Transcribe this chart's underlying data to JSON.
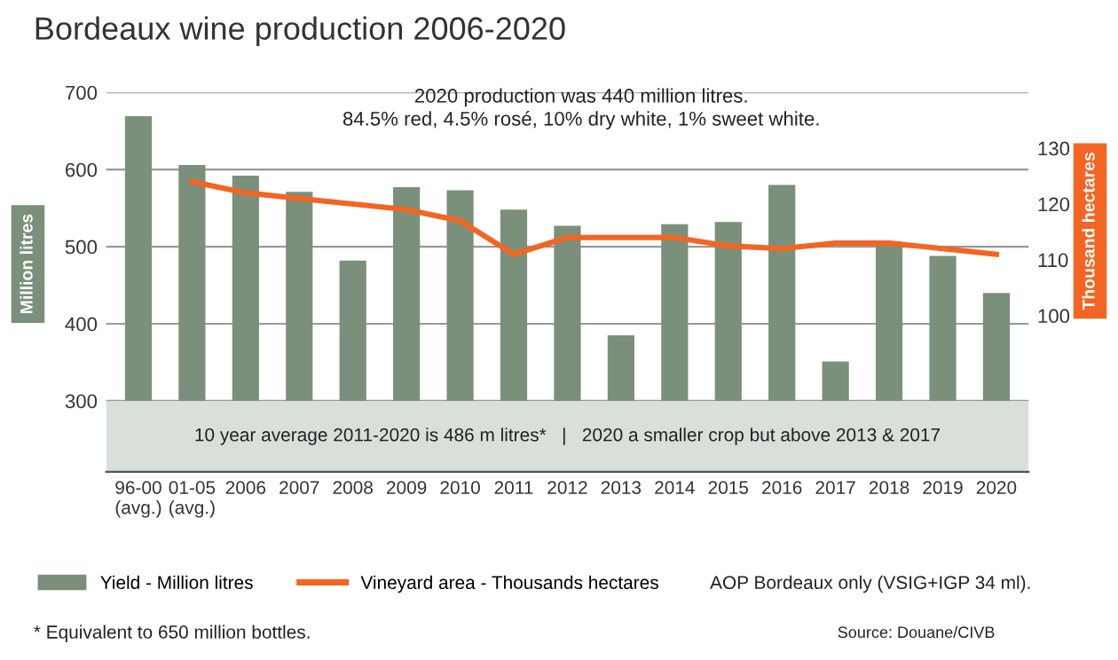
{
  "chart_data": {
    "type": "bar",
    "title": "Bordeaux wine production 2006-2020",
    "categories": [
      "96-00\n(avg.)",
      "01-05\n(avg.)",
      "2006",
      "2007",
      "2008",
      "2009",
      "2010",
      "2011",
      "2012",
      "2013",
      "2014",
      "2015",
      "2016",
      "2017",
      "2018",
      "2019",
      "2020"
    ],
    "series": [
      {
        "name": "Yield - Million litres",
        "color": "#7b907a",
        "base": [
          300,
          300,
          300,
          300,
          300,
          300,
          300,
          300,
          300,
          300,
          300,
          300,
          300,
          300,
          300,
          300,
          300
        ],
        "values": [
          369,
          306,
          292,
          271,
          182,
          277,
          273,
          248,
          227,
          85,
          229,
          232,
          280,
          51,
          202,
          188,
          140
        ]
      },
      {
        "name": "Vineyard area - Thousands hectares",
        "type": "line",
        "axis": "y2",
        "color": "#f26522",
        "values": [
          null,
          124,
          122,
          121,
          120,
          119,
          117,
          111,
          114,
          114,
          114,
          112.5,
          112,
          113,
          113,
          112,
          111
        ]
      }
    ],
    "ylabel": "Million litres",
    "y2label": "Thousand hectares",
    "ylim": [
      208,
      700
    ],
    "yticks": [
      300,
      400,
      500,
      600,
      700
    ],
    "y2lim": [
      72,
      140
    ],
    "y2ticks": [
      100,
      110,
      120,
      130
    ],
    "bands": [
      {
        "axis": "y",
        "from": 208,
        "to": 300,
        "color": "#d9dfd9",
        "label": "10 year average 2011-2020 is 486 m litres*   |   2020 a smaller crop but above 2013 & 2017"
      }
    ],
    "grid": "y",
    "legend": "bottom",
    "marker": "none",
    "line_style": "solid",
    "annotations": [
      "2020 production was 440 million litres.\n84.5% red, 4.5% rosé, 10% dry white, 1% sweet white.",
      "AOP Bordeaux only (VSIG+IGP 34 ml).",
      "* Equivalent to 650 million bottles.",
      "Source: Douane/CIVB"
    ]
  }
}
